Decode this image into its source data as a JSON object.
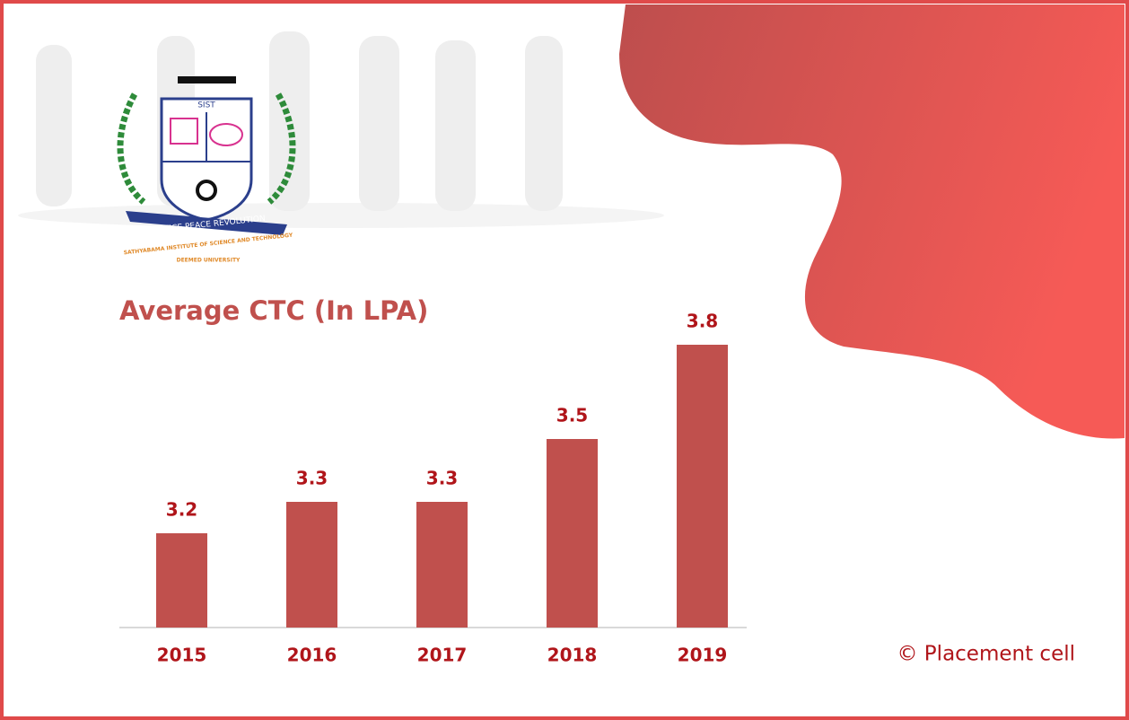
{
  "chart_data": {
    "type": "bar",
    "title": "Average CTC (In LPA)",
    "categories": [
      "2015",
      "2016",
      "2017",
      "2018",
      "2019"
    ],
    "values": [
      3.2,
      3.3,
      3.3,
      3.5,
      3.8
    ],
    "color": "#c0504d",
    "ylim": [
      2.9,
      3.9
    ]
  },
  "logo": {
    "abbr": "SIST",
    "motto": "JUSTICE PEACE REVOLUTION",
    "name": "SATHYABAMA INSTITUTE OF SCIENCE AND TECHNOLOGY",
    "status": "DEEMED UNIVERSITY"
  },
  "credit": "© Placement cell"
}
